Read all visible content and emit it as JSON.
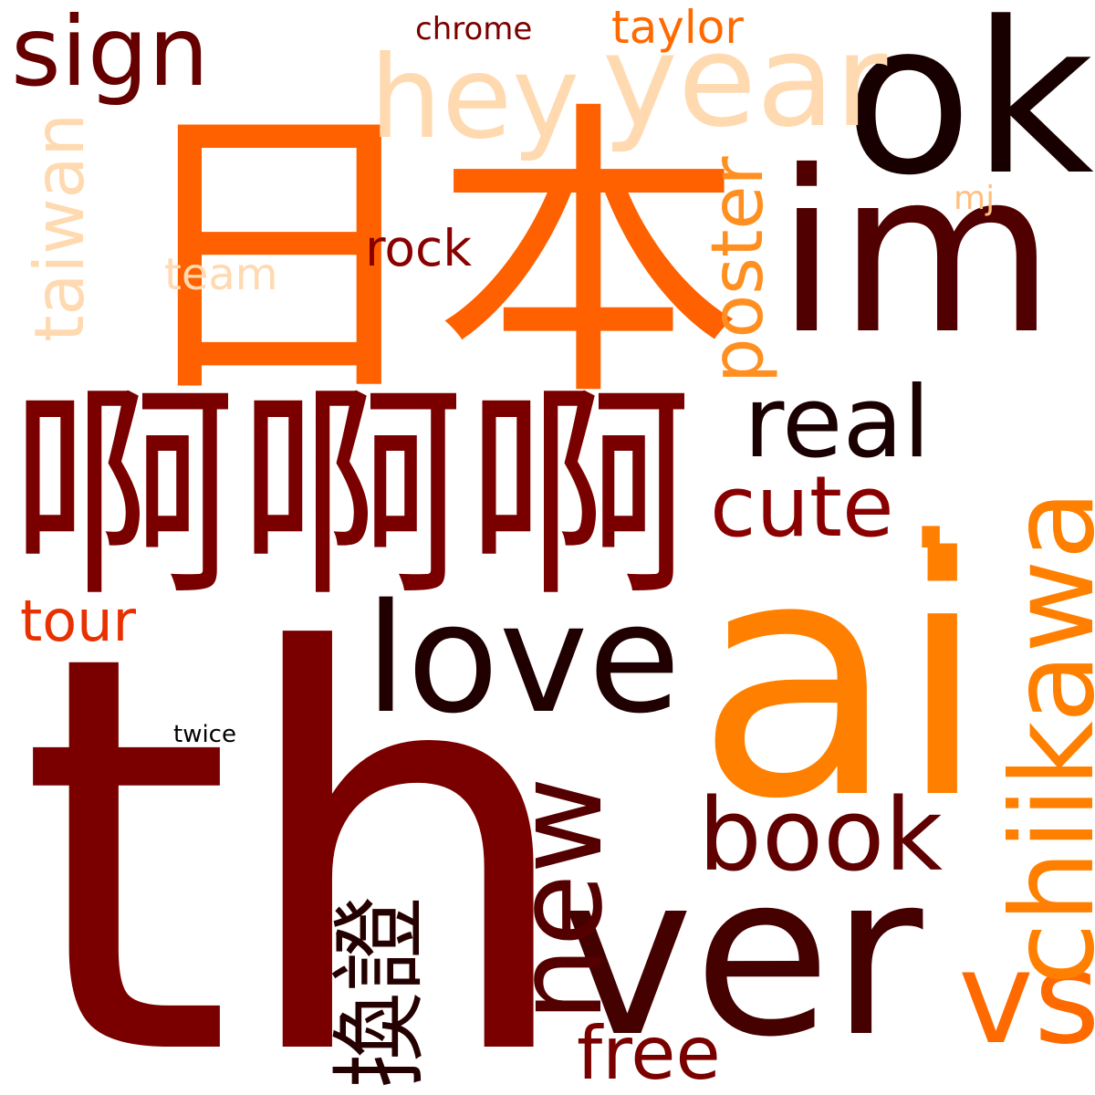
{
  "words": [
    {
      "id": "th",
      "text": "th",
      "color": "#7a0000"
    },
    {
      "id": "nihon",
      "text": "日本",
      "color": "#ff6000"
    },
    {
      "id": "aaa",
      "text": "啊啊啊",
      "color": "#7a0000"
    },
    {
      "id": "ai",
      "text": "ai",
      "color": "#ff8000"
    },
    {
      "id": "ok",
      "text": "ok",
      "color": "#180000"
    },
    {
      "id": "im",
      "text": "im",
      "color": "#500000"
    },
    {
      "id": "ver",
      "text": "ver",
      "color": "#450000"
    },
    {
      "id": "chiikawa",
      "text": "chiikawa",
      "color": "#ff8000"
    },
    {
      "id": "love",
      "text": "love",
      "color": "#200000"
    },
    {
      "id": "new",
      "text": "new",
      "color": "#550000"
    },
    {
      "id": "dot",
      "text": ".",
      "color": "#ff8000"
    },
    {
      "id": "year",
      "text": "year",
      "color": "#ffd9b0"
    },
    {
      "id": "hey",
      "text": "hey",
      "color": "#ffd9b0"
    },
    {
      "id": "sign",
      "text": "sign",
      "color": "#660000"
    },
    {
      "id": "book",
      "text": "book",
      "color": "#600000"
    },
    {
      "id": "real",
      "text": "real",
      "color": "#1a0000"
    },
    {
      "id": "cute",
      "text": "cute",
      "color": "#8a0000"
    },
    {
      "id": "vs",
      "text": "vs",
      "color": "#ff6a00"
    },
    {
      "id": "huanzheng",
      "text": "換證",
      "color": "#250000"
    },
    {
      "id": "poster",
      "text": "poster",
      "color": "#ff8f20"
    },
    {
      "id": "taiwan",
      "text": "taiwan",
      "color": "#ffd9b0"
    },
    {
      "id": "free",
      "text": "free",
      "color": "#7a0000"
    },
    {
      "id": "tour",
      "text": "tour",
      "color": "#e83000"
    },
    {
      "id": "rock",
      "text": "rock",
      "color": "#8a0000"
    },
    {
      "id": "team",
      "text": "team",
      "color": "#ffd9b0"
    },
    {
      "id": "taylor",
      "text": "taylor",
      "color": "#ff6a00"
    },
    {
      "id": "chrome",
      "text": "chrome",
      "color": "#7a0000"
    },
    {
      "id": "mj",
      "text": "mj",
      "color": "#ffbf80"
    },
    {
      "id": "twice",
      "text": "twice",
      "color": "#000000"
    }
  ]
}
